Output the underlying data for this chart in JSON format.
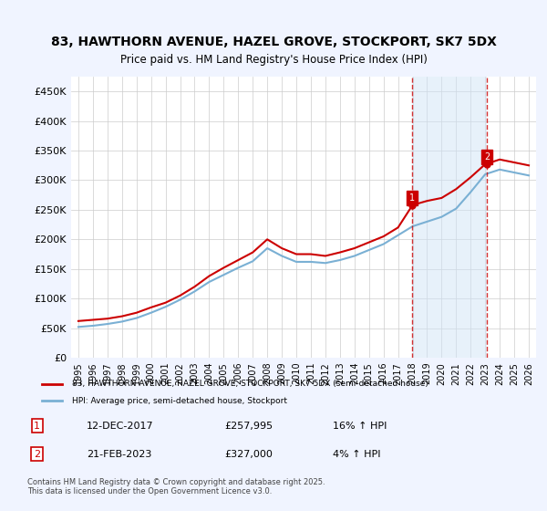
{
  "title": "83, HAWTHORN AVENUE, HAZEL GROVE, STOCKPORT, SK7 5DX",
  "subtitle": "Price paid vs. HM Land Registry's House Price Index (HPI)",
  "background_color": "#f0f4ff",
  "plot_bg_color": "#ffffff",
  "red_color": "#cc0000",
  "blue_color": "#7ab0d4",
  "vline_color": "#cc0000",
  "vline_style": "--",
  "marker1_date_idx": 23,
  "marker2_date_idx": 28,
  "annotation1": {
    "label": "1",
    "date": "12-DEC-2017",
    "price": "£257,995",
    "hpi": "16% ↑ HPI"
  },
  "annotation2": {
    "label": "2",
    "date": "21-FEB-2023",
    "price": "£327,000",
    "hpi": "4% ↑ HPI"
  },
  "legend_line1": "83, HAWTHORN AVENUE, HAZEL GROVE, STOCKPORT, SK7 5DX (semi-detached house)",
  "legend_line2": "HPI: Average price, semi-detached house, Stockport",
  "footer": "Contains HM Land Registry data © Crown copyright and database right 2025.\nThis data is licensed under the Open Government Licence v3.0.",
  "ylim": [
    0,
    475000
  ],
  "yticks": [
    0,
    50000,
    100000,
    150000,
    200000,
    250000,
    300000,
    350000,
    400000,
    450000
  ],
  "ytick_labels": [
    "£0",
    "£50K",
    "£100K",
    "£150K",
    "£200K",
    "£250K",
    "£300K",
    "£350K",
    "£400K",
    "£450K"
  ],
  "xtick_labels": [
    "1995",
    "1996",
    "1997",
    "1998",
    "1999",
    "2000",
    "2001",
    "2002",
    "2003",
    "2004",
    "2005",
    "2006",
    "2007",
    "2008",
    "2009",
    "2010",
    "2011",
    "2012",
    "2013",
    "2014",
    "2015",
    "2016",
    "2017",
    "2018",
    "2019",
    "2020",
    "2021",
    "2022",
    "2023",
    "2024",
    "2025",
    "2026"
  ],
  "years": [
    1995,
    1996,
    1997,
    1998,
    1999,
    2000,
    2001,
    2002,
    2003,
    2004,
    2005,
    2006,
    2007,
    2008,
    2009,
    2010,
    2011,
    2012,
    2013,
    2014,
    2015,
    2016,
    2017,
    2018,
    2019,
    2020,
    2021,
    2022,
    2023,
    2024,
    2025,
    2026
  ],
  "red_values": [
    62000,
    64000,
    66000,
    70000,
    76000,
    85000,
    93000,
    105000,
    120000,
    138000,
    152000,
    165000,
    178000,
    200000,
    185000,
    175000,
    175000,
    172000,
    178000,
    185000,
    195000,
    205000,
    220000,
    257995,
    265000,
    270000,
    285000,
    305000,
    327000,
    335000,
    330000,
    325000
  ],
  "blue_values": [
    52000,
    54000,
    57000,
    61000,
    67000,
    76000,
    86000,
    98000,
    112000,
    128000,
    140000,
    152000,
    163000,
    185000,
    172000,
    162000,
    162000,
    160000,
    165000,
    172000,
    182000,
    192000,
    207000,
    222000,
    230000,
    238000,
    252000,
    280000,
    310000,
    318000,
    313000,
    308000
  ]
}
